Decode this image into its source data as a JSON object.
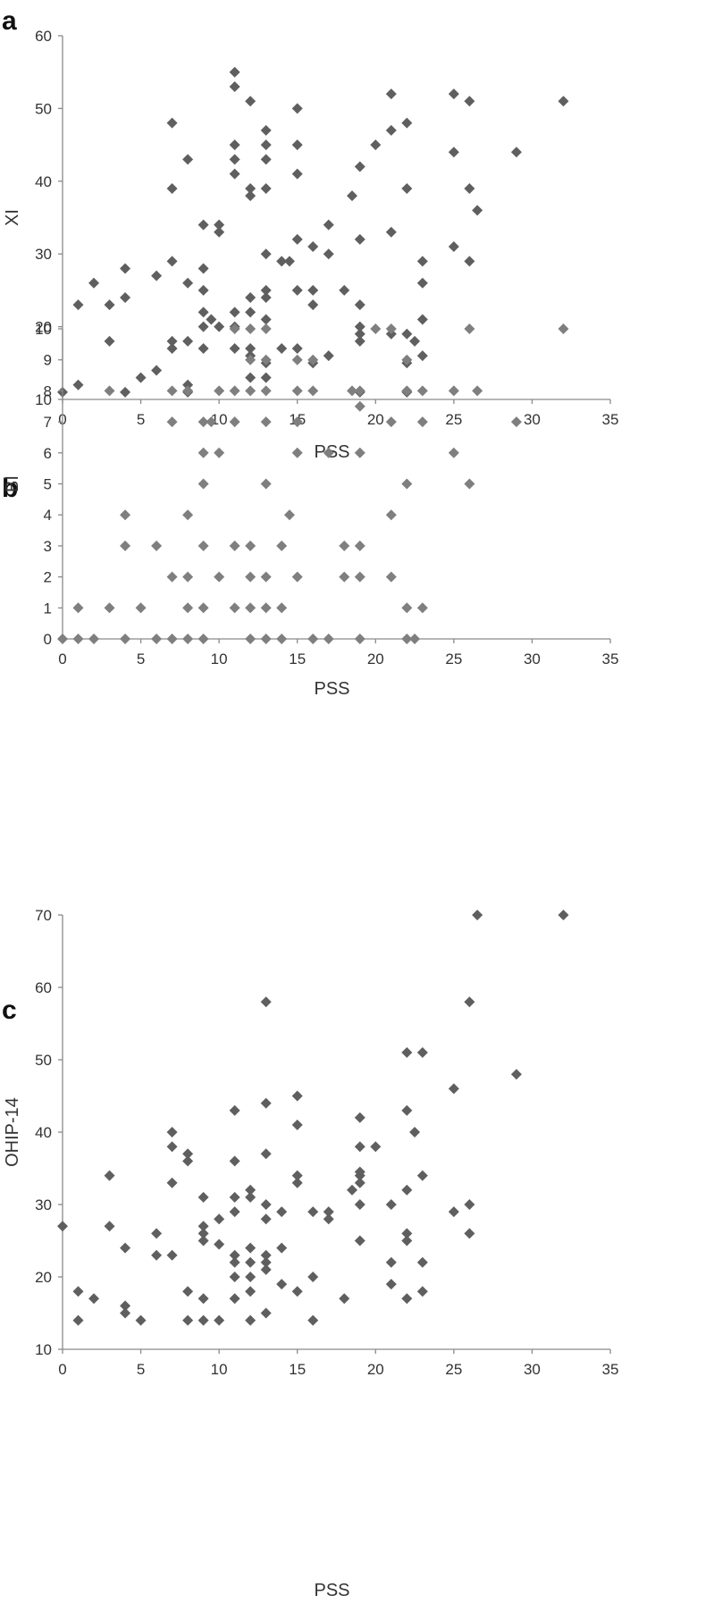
{
  "chart_data": [
    {
      "type": "scatter",
      "panel_label": "a",
      "xlabel": "PSS",
      "ylabel": "XI",
      "xlim": [
        0,
        35
      ],
      "ylim": [
        10,
        60
      ],
      "xticks": [
        "0",
        "5",
        "10",
        "15",
        "20",
        "25",
        "30",
        "35"
      ],
      "yticks": [
        "10",
        "20",
        "30",
        "40",
        "50",
        "60"
      ],
      "grid": false,
      "marker_color": "#5f5f5f",
      "points": [
        [
          0,
          11
        ],
        [
          1,
          12
        ],
        [
          1,
          23
        ],
        [
          2,
          26
        ],
        [
          3,
          18
        ],
        [
          3,
          23
        ],
        [
          4,
          11
        ],
        [
          4,
          24
        ],
        [
          4,
          28
        ],
        [
          5,
          13
        ],
        [
          6,
          14
        ],
        [
          6,
          27
        ],
        [
          7,
          17
        ],
        [
          7,
          18
        ],
        [
          7,
          29
        ],
        [
          7,
          39
        ],
        [
          7,
          48
        ],
        [
          8,
          11
        ],
        [
          8,
          12
        ],
        [
          8,
          18
        ],
        [
          8,
          26
        ],
        [
          8,
          43
        ],
        [
          9,
          17
        ],
        [
          9,
          20
        ],
        [
          9,
          22
        ],
        [
          9,
          25
        ],
        [
          9,
          28
        ],
        [
          9,
          34
        ],
        [
          9.5,
          21
        ],
        [
          10,
          20
        ],
        [
          10,
          33
        ],
        [
          10,
          34
        ],
        [
          11,
          17
        ],
        [
          11,
          20
        ],
        [
          11,
          22
        ],
        [
          11,
          41
        ],
        [
          11,
          43
        ],
        [
          11,
          45
        ],
        [
          11,
          53
        ],
        [
          11,
          55
        ],
        [
          12,
          13
        ],
        [
          12,
          16
        ],
        [
          12,
          17
        ],
        [
          12,
          22
        ],
        [
          12,
          24
        ],
        [
          12,
          38
        ],
        [
          12,
          39
        ],
        [
          12,
          51
        ],
        [
          13,
          13
        ],
        [
          13,
          15
        ],
        [
          13,
          21
        ],
        [
          13,
          24
        ],
        [
          13,
          25
        ],
        [
          13,
          30
        ],
        [
          13,
          39
        ],
        [
          13,
          43
        ],
        [
          13,
          45
        ],
        [
          13,
          47
        ],
        [
          14,
          17
        ],
        [
          14,
          29
        ],
        [
          14.5,
          29
        ],
        [
          15,
          17
        ],
        [
          15,
          25
        ],
        [
          15,
          32
        ],
        [
          15,
          41
        ],
        [
          15,
          45
        ],
        [
          15,
          50
        ],
        [
          16,
          15
        ],
        [
          16,
          23
        ],
        [
          16,
          25
        ],
        [
          16,
          31
        ],
        [
          17,
          16
        ],
        [
          17,
          30
        ],
        [
          17,
          34
        ],
        [
          18,
          25
        ],
        [
          18.5,
          38
        ],
        [
          19,
          11
        ],
        [
          19,
          18
        ],
        [
          19,
          19
        ],
        [
          19,
          20
        ],
        [
          19,
          23
        ],
        [
          19,
          32
        ],
        [
          19,
          42
        ],
        [
          20,
          45
        ],
        [
          21,
          19
        ],
        [
          21,
          33
        ],
        [
          21,
          47
        ],
        [
          21,
          52
        ],
        [
          22,
          11
        ],
        [
          22,
          15
        ],
        [
          22,
          19
        ],
        [
          22,
          39
        ],
        [
          22,
          48
        ],
        [
          22.5,
          18
        ],
        [
          23,
          16
        ],
        [
          23,
          21
        ],
        [
          23,
          26
        ],
        [
          23,
          29
        ],
        [
          25,
          31
        ],
        [
          25,
          44
        ],
        [
          25,
          52
        ],
        [
          26,
          29
        ],
        [
          26,
          39
        ],
        [
          26,
          51
        ],
        [
          26.5,
          36
        ],
        [
          29,
          44
        ],
        [
          32,
          51
        ]
      ]
    },
    {
      "type": "scatter",
      "panel_label": "b",
      "xlabel": "PSS",
      "ylabel": "BI",
      "xlim": [
        0,
        35
      ],
      "ylim": [
        0,
        10
      ],
      "xticks": [
        "0",
        "5",
        "10",
        "15",
        "20",
        "25",
        "30",
        "35"
      ],
      "yticks": [
        "0",
        "1",
        "2",
        "3",
        "4",
        "5",
        "6",
        "7",
        "8",
        "9",
        "10"
      ],
      "grid": false,
      "marker_color": "#7f7f7f",
      "points": [
        [
          0,
          0
        ],
        [
          1,
          0
        ],
        [
          2,
          0
        ],
        [
          4,
          0
        ],
        [
          6,
          0
        ],
        [
          7,
          0
        ],
        [
          8,
          0
        ],
        [
          9,
          0
        ],
        [
          12,
          0
        ],
        [
          13,
          0
        ],
        [
          14,
          0
        ],
        [
          16,
          0
        ],
        [
          17,
          0
        ],
        [
          19,
          0
        ],
        [
          22,
          0
        ],
        [
          22.5,
          0
        ],
        [
          1,
          1
        ],
        [
          3,
          1
        ],
        [
          5,
          1
        ],
        [
          8,
          1
        ],
        [
          9,
          1
        ],
        [
          11,
          1
        ],
        [
          12,
          1
        ],
        [
          13,
          1
        ],
        [
          14,
          1
        ],
        [
          22,
          1
        ],
        [
          23,
          1
        ],
        [
          7,
          2
        ],
        [
          8,
          2
        ],
        [
          10,
          2
        ],
        [
          12,
          2
        ],
        [
          13,
          2
        ],
        [
          15,
          2
        ],
        [
          18,
          2
        ],
        [
          19,
          2
        ],
        [
          21,
          2
        ],
        [
          4,
          3
        ],
        [
          6,
          3
        ],
        [
          9,
          3
        ],
        [
          11,
          3
        ],
        [
          12,
          3
        ],
        [
          14,
          3
        ],
        [
          18,
          3
        ],
        [
          19,
          3
        ],
        [
          4,
          4
        ],
        [
          8,
          4
        ],
        [
          14.5,
          4
        ],
        [
          21,
          4
        ],
        [
          9,
          5
        ],
        [
          13,
          5
        ],
        [
          22,
          5
        ],
        [
          26,
          5
        ],
        [
          9,
          6
        ],
        [
          10,
          6
        ],
        [
          15,
          6
        ],
        [
          17,
          6
        ],
        [
          19,
          6
        ],
        [
          25,
          6
        ],
        [
          7,
          7
        ],
        [
          9,
          7
        ],
        [
          9.5,
          7
        ],
        [
          11,
          7
        ],
        [
          13,
          7
        ],
        [
          15,
          7
        ],
        [
          21,
          7
        ],
        [
          23,
          7
        ],
        [
          29,
          7
        ],
        [
          19,
          7.5
        ],
        [
          3,
          8
        ],
        [
          7,
          8
        ],
        [
          8,
          8
        ],
        [
          10,
          8
        ],
        [
          11,
          8
        ],
        [
          12,
          8
        ],
        [
          13,
          8
        ],
        [
          15,
          8
        ],
        [
          16,
          8
        ],
        [
          18.5,
          8
        ],
        [
          19,
          8
        ],
        [
          22,
          8
        ],
        [
          23,
          8
        ],
        [
          25,
          8
        ],
        [
          26.5,
          8
        ],
        [
          12,
          9
        ],
        [
          13,
          9
        ],
        [
          15,
          9
        ],
        [
          16,
          9
        ],
        [
          22,
          9
        ],
        [
          11,
          10
        ],
        [
          12,
          10
        ],
        [
          13,
          10
        ],
        [
          20,
          10
        ],
        [
          21,
          10
        ],
        [
          26,
          10
        ],
        [
          32,
          10
        ]
      ]
    },
    {
      "type": "scatter",
      "panel_label": "c",
      "xlabel": "PSS",
      "ylabel": "OHIP-14",
      "xlim": [
        0,
        35
      ],
      "ylim": [
        10,
        70
      ],
      "xticks": [
        "0",
        "5",
        "10",
        "15",
        "20",
        "25",
        "30",
        "35"
      ],
      "yticks": [
        "10",
        "20",
        "30",
        "40",
        "50",
        "60",
        "70"
      ],
      "grid": false,
      "marker_color": "#5f5f5f",
      "points": [
        [
          0,
          27
        ],
        [
          1,
          14
        ],
        [
          1,
          18
        ],
        [
          2,
          17
        ],
        [
          3,
          27
        ],
        [
          3,
          34
        ],
        [
          4,
          15
        ],
        [
          4,
          16
        ],
        [
          4,
          24
        ],
        [
          5,
          14
        ],
        [
          6,
          23
        ],
        [
          6,
          26
        ],
        [
          7,
          23
        ],
        [
          7,
          33
        ],
        [
          7,
          38
        ],
        [
          7,
          40
        ],
        [
          8,
          14
        ],
        [
          8,
          18
        ],
        [
          8,
          36
        ],
        [
          8,
          37
        ],
        [
          9,
          14
        ],
        [
          9,
          17
        ],
        [
          9,
          25
        ],
        [
          9,
          26
        ],
        [
          9,
          27
        ],
        [
          9,
          31
        ],
        [
          10,
          14
        ],
        [
          10,
          24.5
        ],
        [
          10,
          28
        ],
        [
          11,
          17
        ],
        [
          11,
          20
        ],
        [
          11,
          22
        ],
        [
          11,
          23
        ],
        [
          11,
          29
        ],
        [
          11,
          31
        ],
        [
          11,
          36
        ],
        [
          11,
          43
        ],
        [
          12,
          14
        ],
        [
          12,
          18
        ],
        [
          12,
          20
        ],
        [
          12,
          22
        ],
        [
          12,
          24
        ],
        [
          12,
          31
        ],
        [
          12,
          32
        ],
        [
          13,
          15
        ],
        [
          13,
          21
        ],
        [
          13,
          22
        ],
        [
          13,
          23
        ],
        [
          13,
          28
        ],
        [
          13,
          30
        ],
        [
          13,
          37
        ],
        [
          13,
          44
        ],
        [
          13,
          58
        ],
        [
          14,
          19
        ],
        [
          14,
          24
        ],
        [
          14,
          29
        ],
        [
          15,
          18
        ],
        [
          15,
          33
        ],
        [
          15,
          34
        ],
        [
          15,
          41
        ],
        [
          15,
          45
        ],
        [
          16,
          14
        ],
        [
          16,
          20
        ],
        [
          16,
          29
        ],
        [
          17,
          28
        ],
        [
          17,
          29
        ],
        [
          18,
          17
        ],
        [
          18.5,
          32
        ],
        [
          19,
          25
        ],
        [
          19,
          30
        ],
        [
          19,
          33
        ],
        [
          19,
          34
        ],
        [
          19,
          34.5
        ],
        [
          19,
          38
        ],
        [
          19,
          42
        ],
        [
          20,
          38
        ],
        [
          21,
          19
        ],
        [
          21,
          22
        ],
        [
          21,
          30
        ],
        [
          22,
          17
        ],
        [
          22,
          25
        ],
        [
          22,
          26
        ],
        [
          22,
          32
        ],
        [
          22,
          43
        ],
        [
          22,
          51
        ],
        [
          22.5,
          40
        ],
        [
          23,
          18
        ],
        [
          23,
          22
        ],
        [
          23,
          34
        ],
        [
          23,
          51
        ],
        [
          25,
          29
        ],
        [
          25,
          46
        ],
        [
          26,
          26
        ],
        [
          26,
          30
        ],
        [
          26,
          58
        ],
        [
          26.5,
          70
        ],
        [
          29,
          48
        ],
        [
          32,
          70
        ]
      ]
    }
  ]
}
